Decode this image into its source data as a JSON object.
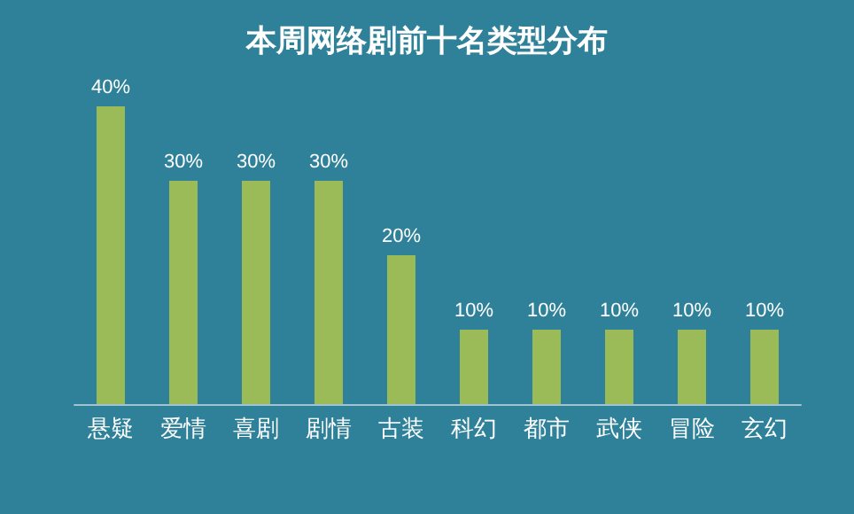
{
  "chart_data": {
    "type": "bar",
    "title": "本周网络剧前十名类型分布",
    "categories": [
      "悬疑",
      "爱情",
      "喜剧",
      "剧情",
      "古装",
      "科幻",
      "都市",
      "武侠",
      "冒险",
      "玄幻"
    ],
    "values": [
      40,
      30,
      30,
      30,
      20,
      10,
      10,
      10,
      10,
      10
    ],
    "value_labels": [
      "40%",
      "30%",
      "30%",
      "30%",
      "20%",
      "10%",
      "10%",
      "10%",
      "10%",
      "10%"
    ],
    "color": "#9bbb59"
  }
}
